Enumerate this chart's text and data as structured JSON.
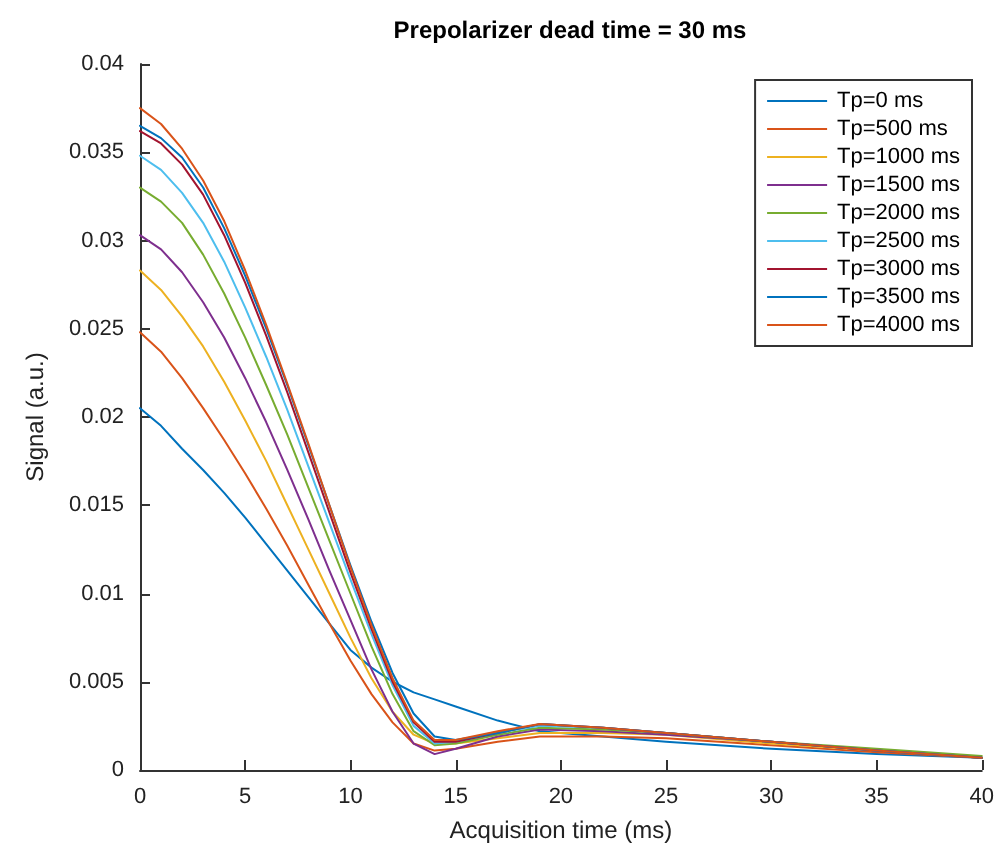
{
  "chart_data": {
    "type": "line",
    "title": "Prepolarizer dead time = 30 ms",
    "xlabel": "Acquisition time (ms)",
    "ylabel": "Signal (a.u.)",
    "x": [
      0,
      1,
      2,
      3,
      4,
      5,
      6,
      7,
      8,
      9,
      10,
      11,
      12,
      13,
      14,
      15,
      17,
      19,
      22,
      25,
      30,
      35,
      40
    ],
    "xlim": [
      0,
      40
    ],
    "xticks": [
      0,
      5,
      10,
      15,
      20,
      25,
      30,
      35,
      40
    ],
    "ylim": [
      0,
      0.04
    ],
    "yticks": [
      0,
      0.005,
      0.01,
      0.015,
      0.02,
      0.025,
      0.03,
      0.035,
      0.04
    ],
    "grid": false,
    "legend": "top right",
    "marker": "none",
    "line_style": "solid",
    "series": [
      {
        "name": "Tp=0 ms",
        "color": "#0072bd",
        "values": [
          0.0205,
          0.0195,
          0.0182,
          0.017,
          0.0157,
          0.0143,
          0.0128,
          0.0113,
          0.0098,
          0.0083,
          0.0068,
          0.0058,
          0.005,
          0.0044,
          0.004,
          0.0036,
          0.0028,
          0.0022,
          0.0019,
          0.0016,
          0.0012,
          0.0009,
          0.0007
        ]
      },
      {
        "name": "Tp=500 ms",
        "color": "#d95319",
        "values": [
          0.0248,
          0.0237,
          0.0222,
          0.0205,
          0.0187,
          0.0168,
          0.0148,
          0.0127,
          0.0105,
          0.0083,
          0.0062,
          0.0043,
          0.0027,
          0.0015,
          0.0011,
          0.0012,
          0.0016,
          0.0019,
          0.0019,
          0.0018,
          0.0014,
          0.001,
          0.0007
        ]
      },
      {
        "name": "Tp=1000 ms",
        "color": "#edb120",
        "values": [
          0.0283,
          0.0272,
          0.0257,
          0.024,
          0.022,
          0.0198,
          0.0175,
          0.015,
          0.0125,
          0.01,
          0.0075,
          0.0052,
          0.0033,
          0.002,
          0.0015,
          0.0015,
          0.0018,
          0.0021,
          0.0021,
          0.002,
          0.0015,
          0.0011,
          0.0007
        ]
      },
      {
        "name": "Tp=1500 ms",
        "color": "#7e2f8e",
        "values": [
          0.0303,
          0.0295,
          0.0282,
          0.0265,
          0.0245,
          0.0222,
          0.0197,
          0.017,
          0.0142,
          0.0113,
          0.0085,
          0.0057,
          0.0033,
          0.0015,
          0.0009,
          0.0012,
          0.0019,
          0.0023,
          0.0022,
          0.002,
          0.0016,
          0.0011,
          0.0007
        ]
      },
      {
        "name": "Tp=2000 ms",
        "color": "#77ac30",
        "values": [
          0.033,
          0.0322,
          0.031,
          0.0292,
          0.027,
          0.0245,
          0.0218,
          0.019,
          0.016,
          0.013,
          0.01,
          0.007,
          0.0043,
          0.0022,
          0.0014,
          0.0015,
          0.002,
          0.0024,
          0.0023,
          0.0021,
          0.0016,
          0.0012,
          0.0008
        ]
      },
      {
        "name": "Tp=2500 ms",
        "color": "#4dbeee",
        "values": [
          0.0348,
          0.034,
          0.0327,
          0.031,
          0.0288,
          0.0262,
          0.0234,
          0.0204,
          0.0172,
          0.014,
          0.0108,
          0.0077,
          0.0048,
          0.0025,
          0.0015,
          0.0016,
          0.0021,
          0.0025,
          0.0024,
          0.0021,
          0.0016,
          0.0011,
          0.0007
        ]
      },
      {
        "name": "Tp=3000 ms",
        "color": "#a2142f",
        "values": [
          0.0362,
          0.0355,
          0.0343,
          0.0326,
          0.0303,
          0.0276,
          0.0246,
          0.0214,
          0.018,
          0.0146,
          0.0112,
          0.008,
          0.005,
          0.0027,
          0.0016,
          0.0016,
          0.0021,
          0.0026,
          0.0024,
          0.0021,
          0.0016,
          0.0011,
          0.0007
        ]
      },
      {
        "name": "Tp=3500 ms",
        "color": "#0072bd",
        "values": [
          0.0365,
          0.0358,
          0.0347,
          0.033,
          0.0307,
          0.028,
          0.025,
          0.0218,
          0.0184,
          0.015,
          0.0116,
          0.0084,
          0.0055,
          0.0032,
          0.0019,
          0.0017,
          0.0021,
          0.0026,
          0.0024,
          0.0021,
          0.0016,
          0.0011,
          0.0007
        ]
      },
      {
        "name": "Tp=4000 ms",
        "color": "#d95319",
        "values": [
          0.0375,
          0.0366,
          0.0352,
          0.0334,
          0.0311,
          0.0283,
          0.0252,
          0.0219,
          0.0185,
          0.015,
          0.0115,
          0.0082,
          0.0052,
          0.0028,
          0.0017,
          0.0017,
          0.0022,
          0.0026,
          0.0024,
          0.0021,
          0.0016,
          0.0011,
          0.0007
        ]
      }
    ]
  }
}
